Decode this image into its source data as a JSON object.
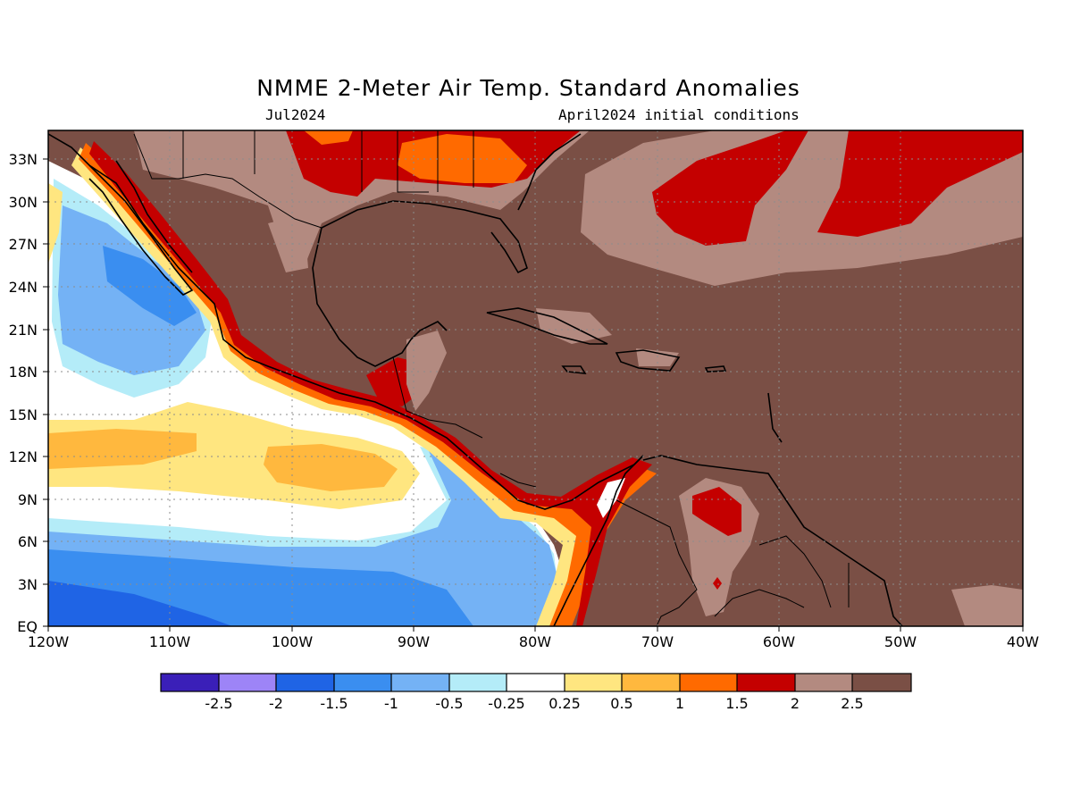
{
  "title": "NMME 2-Meter Air Temp. Standard Anomalies",
  "valid_label": "Jul2024",
  "init_label": "April2024 initial conditions",
  "lat_ticks": [
    "EQ",
    "3N",
    "6N",
    "9N",
    "12N",
    "15N",
    "18N",
    "21N",
    "24N",
    "27N",
    "30N",
    "33N"
  ],
  "lon_ticks": [
    "120W",
    "110W",
    "100W",
    "90W",
    "80W",
    "70W",
    "60W",
    "50W",
    "40W"
  ],
  "colorbar": {
    "colors": [
      "#3a1fb8",
      "#9d84f7",
      "#1f64e5",
      "#3a8ef0",
      "#74b2f5",
      "#b4ecf8",
      "#ffffff",
      "#ffe680",
      "#ffb83e",
      "#ff6a00",
      "#c40000",
      "#b38a80",
      "#7a4f45"
    ],
    "labels": [
      "-2.5",
      "-2",
      "-1.5",
      "-1",
      "-0.5",
      "-0.25",
      "0.25",
      "0.5",
      "1",
      "1.5",
      "2",
      "2.5"
    ]
  }
}
